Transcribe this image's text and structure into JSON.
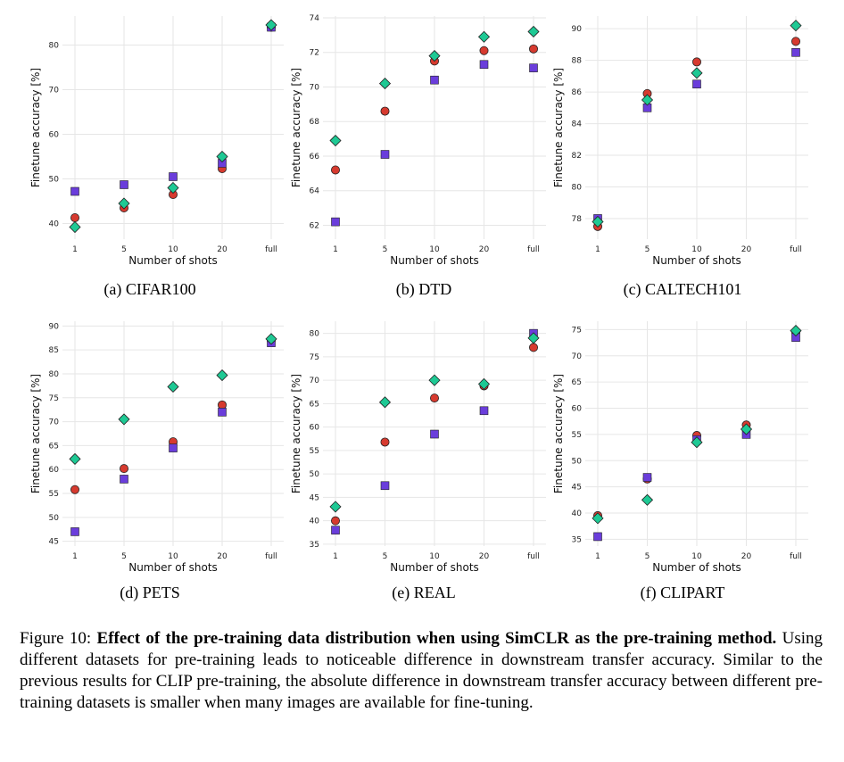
{
  "figure": {
    "caption_label": "Figure 10:",
    "caption_bold": "Effect of the pre-training data distribution when using SimCLR as the pre-training method.",
    "caption_text": " Using different datasets for pre-training leads to noticeable difference in downstream transfer accuracy. Similar to the previous results for CLIP pre-training, the absolute difference in downstream transfer accuracy between different pre-training datasets is smaller when many images are available for fine-tuning."
  },
  "colors": {
    "circle": "#d63a2f",
    "square": "#6a3ddb",
    "diamond": "#1ec994",
    "edge": "#222222",
    "grid": "#e6e6e6"
  },
  "chart_data": [
    {
      "type": "scatter",
      "title": "(a) CIFAR100",
      "xlabel": "Number of shots",
      "ylabel": "Finetune accuracy [%]",
      "categories": [
        "1",
        "5",
        "10",
        "20",
        "full"
      ],
      "yticks": [
        40,
        50,
        60,
        70,
        80
      ],
      "ylim": [
        36.5,
        86.5
      ],
      "series": [
        {
          "marker": "circle",
          "values": [
            41.3,
            43.5,
            46.5,
            52.3,
            84.0
          ]
        },
        {
          "marker": "square",
          "values": [
            47.2,
            48.7,
            50.5,
            53.5,
            84.0
          ]
        },
        {
          "marker": "diamond",
          "values": [
            39.2,
            44.5,
            48.0,
            55.0,
            84.5
          ]
        }
      ]
    },
    {
      "type": "scatter",
      "title": "(b) DTD",
      "xlabel": "Number of shots",
      "ylabel": "Finetune accuracy [%]",
      "categories": [
        "1",
        "5",
        "10",
        "20",
        "full"
      ],
      "yticks": [
        62,
        64,
        66,
        68,
        70,
        72,
        74
      ],
      "ylim": [
        61.2,
        74.1
      ],
      "series": [
        {
          "marker": "circle",
          "values": [
            65.2,
            68.6,
            71.5,
            72.1,
            72.2
          ]
        },
        {
          "marker": "square",
          "values": [
            62.2,
            66.1,
            70.4,
            71.3,
            71.1
          ]
        },
        {
          "marker": "diamond",
          "values": [
            66.9,
            70.2,
            71.8,
            72.9,
            73.2
          ]
        }
      ]
    },
    {
      "type": "scatter",
      "title": "(c) CALTECH101",
      "xlabel": "Number of shots",
      "ylabel": "Finetune accuracy [%]",
      "categories": [
        "1",
        "5",
        "10",
        "20",
        "full"
      ],
      "yticks": [
        78,
        80,
        82,
        84,
        86,
        88,
        90
      ],
      "ylim": [
        76.7,
        90.8
      ],
      "series": [
        {
          "marker": "circle",
          "values": [
            77.5,
            85.9,
            87.9,
            null,
            89.2
          ]
        },
        {
          "marker": "square",
          "values": [
            78.0,
            85.0,
            86.5,
            null,
            88.5
          ]
        },
        {
          "marker": "diamond",
          "values": [
            77.8,
            85.5,
            87.2,
            null,
            90.2
          ]
        }
      ]
    },
    {
      "type": "scatter",
      "title": "(d) PETS",
      "xlabel": "Number of shots",
      "ylabel": "Finetune accuracy [%]",
      "categories": [
        "1",
        "5",
        "10",
        "20",
        "full"
      ],
      "yticks": [
        45,
        50,
        55,
        60,
        65,
        70,
        75,
        80,
        85,
        90
      ],
      "ylim": [
        44,
        91
      ],
      "series": [
        {
          "marker": "circle",
          "values": [
            55.8,
            60.2,
            65.8,
            73.5,
            87.0
          ]
        },
        {
          "marker": "square",
          "values": [
            47.0,
            58.0,
            64.5,
            72.0,
            86.5
          ]
        },
        {
          "marker": "diamond",
          "values": [
            62.2,
            70.5,
            77.3,
            79.7,
            87.3
          ]
        }
      ]
    },
    {
      "type": "scatter",
      "title": "(e) REAL",
      "xlabel": "Number of shots",
      "ylabel": "Finetune accuracy [%]",
      "categories": [
        "1",
        "5",
        "10",
        "20",
        "full"
      ],
      "yticks": [
        35,
        40,
        45,
        50,
        55,
        60,
        65,
        70,
        75,
        80
      ],
      "ylim": [
        34.6,
        82.6
      ],
      "series": [
        {
          "marker": "circle",
          "values": [
            40.0,
            56.8,
            66.2,
            68.8,
            77.0
          ]
        },
        {
          "marker": "square",
          "values": [
            38.0,
            47.5,
            58.5,
            63.5,
            80.0
          ]
        },
        {
          "marker": "diamond",
          "values": [
            43.0,
            65.3,
            70.0,
            69.2,
            79.0
          ]
        }
      ]
    },
    {
      "type": "scatter",
      "title": "(f) CLIPART",
      "xlabel": "Number of shots",
      "ylabel": "Finetune accuracy [%]",
      "categories": [
        "1",
        "5",
        "10",
        "20",
        "full"
      ],
      "yticks": [
        35,
        40,
        45,
        50,
        55,
        60,
        65,
        70,
        75
      ],
      "ylim": [
        33.7,
        76.6
      ],
      "series": [
        {
          "marker": "circle",
          "values": [
            39.5,
            46.5,
            54.8,
            56.8,
            74.5
          ]
        },
        {
          "marker": "square",
          "values": [
            35.5,
            46.8,
            54.0,
            55.0,
            73.5
          ]
        },
        {
          "marker": "diamond",
          "values": [
            39.0,
            42.5,
            53.5,
            56.0,
            74.8
          ]
        }
      ]
    }
  ]
}
